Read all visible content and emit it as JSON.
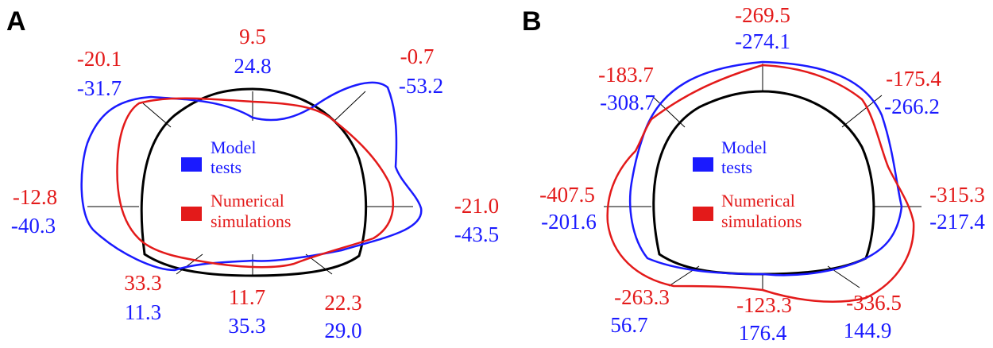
{
  "colors": {
    "model": "#1a1aff",
    "numerical": "#e31a1a",
    "lining": "#000000"
  },
  "legend": {
    "model_line1": "Model",
    "model_line2": "tests",
    "numerical_line1": "Numerical",
    "numerical_line2": "simulations"
  },
  "panels": [
    {
      "letter": "A",
      "labels": [
        {
          "id": "top",
          "numerical": "9.5",
          "model": "24.8"
        },
        {
          "id": "upper-left",
          "numerical": "-20.1",
          "model": "-31.7"
        },
        {
          "id": "upper-right",
          "numerical": "-0.7",
          "model": "-53.2"
        },
        {
          "id": "left",
          "numerical": "-12.8",
          "model": "-40.3"
        },
        {
          "id": "right",
          "numerical": "-21.0",
          "model": "-43.5"
        },
        {
          "id": "lower-left",
          "numerical": "33.3",
          "model": "11.3"
        },
        {
          "id": "bottom",
          "numerical": "11.7",
          "model": "35.3"
        },
        {
          "id": "lower-right",
          "numerical": "22.3",
          "model": "29.0"
        }
      ]
    },
    {
      "letter": "B",
      "labels": [
        {
          "id": "top",
          "numerical": "-269.5",
          "model": "-274.1"
        },
        {
          "id": "upper-left",
          "numerical": "-183.7",
          "model": "-308.7"
        },
        {
          "id": "upper-right",
          "numerical": "-175.4",
          "model": "-266.2"
        },
        {
          "id": "left",
          "numerical": "-407.5",
          "model": "-201.6"
        },
        {
          "id": "right",
          "numerical": "-315.3",
          "model": "-217.4"
        },
        {
          "id": "lower-left",
          "numerical": "-263.3",
          "model": "56.7"
        },
        {
          "id": "bottom",
          "numerical": "-123.3",
          "model": "176.4"
        },
        {
          "id": "lower-right",
          "numerical": "-336.5",
          "model": "144.9"
        }
      ]
    }
  ]
}
